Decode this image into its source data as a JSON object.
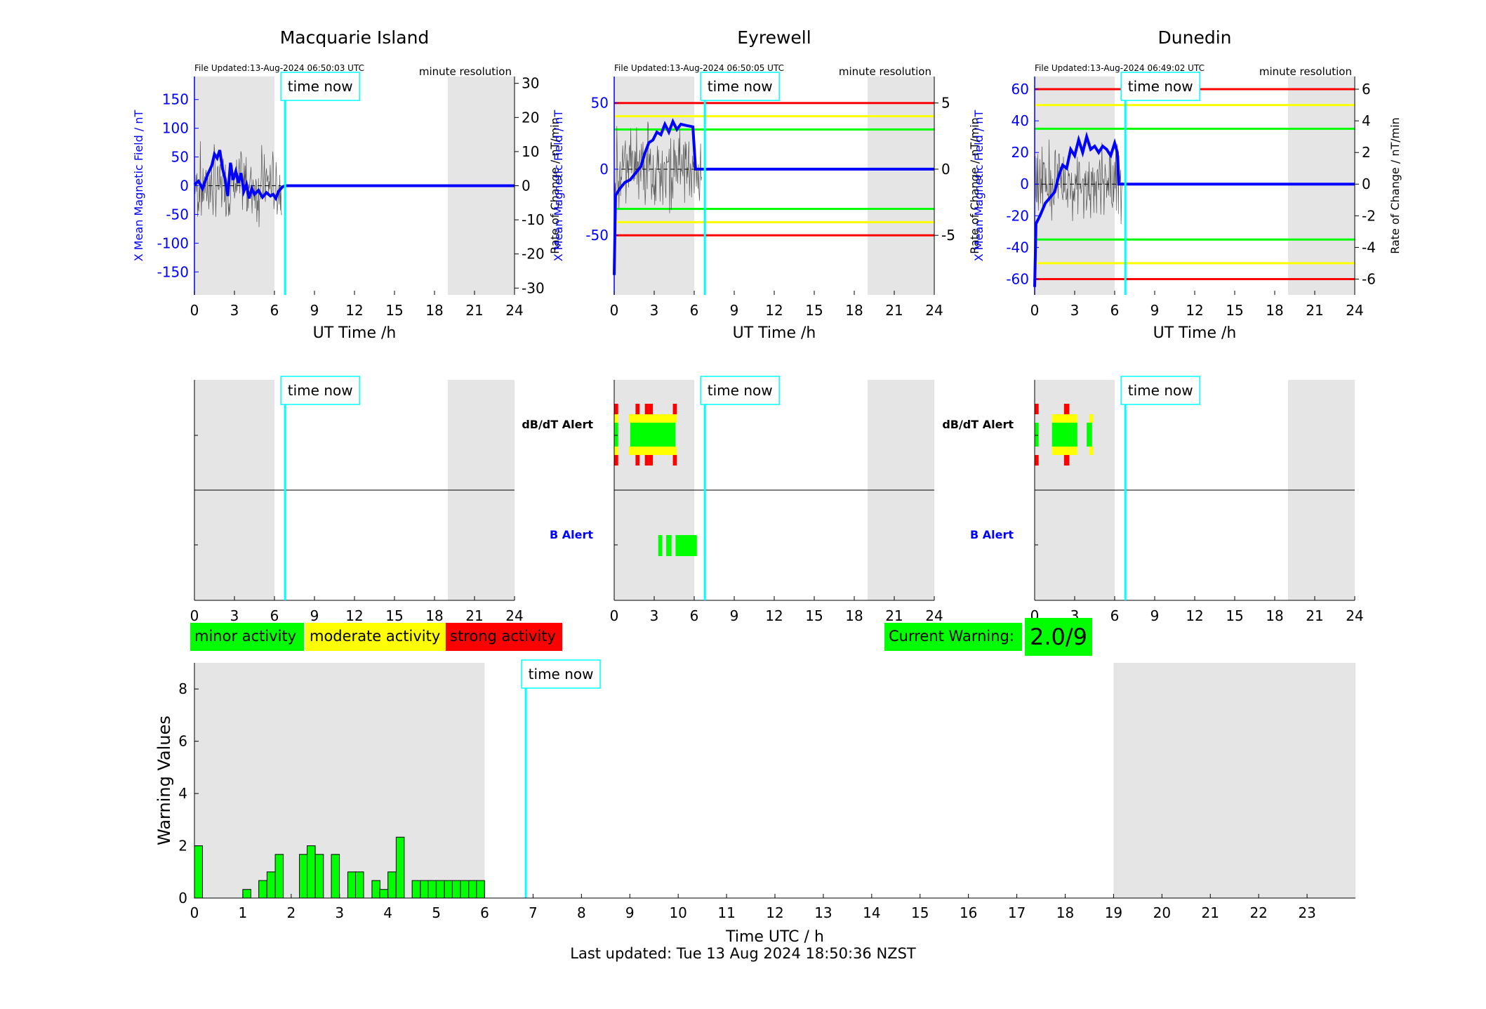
{
  "colors": {
    "shade": "#e5e5e5",
    "green": "#00ff00",
    "yellow": "#ffff00",
    "red": "#ff0000",
    "cyan": "#00ffff",
    "blue": "#0000ff",
    "grey": "#555555"
  },
  "time_now_label": "time now",
  "stations": [
    {
      "name": "Macquarie Island",
      "file_updated": "File Updated:13-Aug-2024 06:50:03 UTC",
      "resolution": "minute resolution",
      "left_label": "X Mean Magnetic Field / nT",
      "right_label": "Rate of Change / nT/min",
      "xlabel": "UT Time /h",
      "xticks": [
        "0",
        "3",
        "6",
        "9",
        "12",
        "15",
        "18",
        "21",
        "24"
      ],
      "left_ylim": [
        -190,
        190
      ],
      "left_ticks": [
        -150,
        -100,
        -50,
        0,
        50,
        100,
        150
      ],
      "right_ylim": [
        -32,
        32
      ],
      "right_ticks": [
        -30,
        -20,
        -10,
        0,
        10,
        20,
        30
      ],
      "thresholds": [],
      "shade_hours": [
        [
          0,
          6
        ],
        [
          19,
          24
        ]
      ],
      "time_now_h": 6.8,
      "mean_field": [
        [
          0,
          2
        ],
        [
          0.3,
          8
        ],
        [
          0.6,
          -5
        ],
        [
          1,
          20
        ],
        [
          1.3,
          35
        ],
        [
          1.5,
          55
        ],
        [
          1.7,
          48
        ],
        [
          1.9,
          62
        ],
        [
          2.1,
          30
        ],
        [
          2.3,
          12
        ],
        [
          2.5,
          -18
        ],
        [
          2.7,
          40
        ],
        [
          2.9,
          10
        ],
        [
          3.1,
          25
        ],
        [
          3.3,
          5
        ],
        [
          3.5,
          22
        ],
        [
          3.7,
          -10
        ],
        [
          3.9,
          2
        ],
        [
          4.1,
          -22
        ],
        [
          4.3,
          -5
        ],
        [
          4.5,
          -15
        ],
        [
          4.8,
          -8
        ],
        [
          5.1,
          -20
        ],
        [
          5.4,
          -12
        ],
        [
          5.7,
          -18
        ],
        [
          5.9,
          -15
        ],
        [
          6.1,
          -22
        ],
        [
          6.3,
          -10
        ],
        [
          6.6,
          -2
        ],
        [
          6.8,
          0
        ],
        [
          24,
          0
        ]
      ],
      "alert_dbdt": [],
      "alert_b": []
    },
    {
      "name": "Eyrewell",
      "file_updated": "File Updated:13-Aug-2024 06:50:05 UTC",
      "resolution": "minute resolution",
      "left_label": "X Mean Magnetic Field / nT",
      "right_label": "Rate of Change / nT/min",
      "xlabel": "UT Time /h",
      "xticks": [
        "0",
        "3",
        "6",
        "9",
        "12",
        "15",
        "18",
        "21",
        "24"
      ],
      "left_ylim": [
        -95,
        70
      ],
      "left_ticks": [
        -50,
        0,
        50
      ],
      "right_ylim": [
        -9.5,
        7
      ],
      "right_ticks": [
        -5,
        0,
        5
      ],
      "thresholds": [
        {
          "level": 3,
          "color": "#00ff00"
        },
        {
          "level": -3,
          "color": "#00ff00"
        },
        {
          "level": 4,
          "color": "#ffff00"
        },
        {
          "level": -4,
          "color": "#ffff00"
        },
        {
          "level": 5,
          "color": "#ff0000"
        },
        {
          "level": -5,
          "color": "#ff0000"
        }
      ],
      "shade_hours": [
        [
          0,
          6
        ],
        [
          19,
          24
        ]
      ],
      "time_now_h": 6.8,
      "mean_field": [
        [
          0,
          -80
        ],
        [
          0.1,
          -20
        ],
        [
          0.4,
          -15
        ],
        [
          0.8,
          -10
        ],
        [
          1.2,
          -8
        ],
        [
          1.6,
          -3
        ],
        [
          2,
          2
        ],
        [
          2.3,
          12
        ],
        [
          2.6,
          20
        ],
        [
          2.9,
          22
        ],
        [
          3.2,
          28
        ],
        [
          3.5,
          26
        ],
        [
          3.8,
          34
        ],
        [
          4.1,
          28
        ],
        [
          4.4,
          36
        ],
        [
          4.7,
          30
        ],
        [
          5,
          34
        ],
        [
          5.4,
          33
        ],
        [
          5.9,
          32
        ],
        [
          6.1,
          0
        ],
        [
          24,
          0
        ]
      ],
      "alert_dbdt": [
        [
          0,
          0.3,
          "r"
        ],
        [
          1.6,
          1.9,
          "r"
        ],
        [
          2.3,
          2.6,
          "r"
        ],
        [
          2.6,
          2.9,
          "r"
        ],
        [
          3.1,
          3.4,
          "y"
        ],
        [
          4.4,
          4.7,
          "r"
        ]
      ],
      "alert_b": [
        [
          3.3,
          3.6,
          "g"
        ],
        [
          3.9,
          4.3,
          "g"
        ],
        [
          4.6,
          6.2,
          "g"
        ]
      ]
    },
    {
      "name": "Dunedin",
      "file_updated": "File Updated:13-Aug-2024 06:49:02 UTC",
      "resolution": "minute resolution",
      "left_label": "X Mean Magnetic Field / nT",
      "right_label": "Rate of Change / nT/min",
      "xlabel": "UT Time /h",
      "xticks": [
        "0",
        "3",
        "6",
        "9",
        "12",
        "15",
        "18",
        "21",
        "24"
      ],
      "left_ylim": [
        -70,
        68
      ],
      "left_ticks": [
        -60,
        -40,
        -20,
        0,
        20,
        40,
        60
      ],
      "right_ylim": [
        -7,
        6.8
      ],
      "right_ticks": [
        -6,
        -4,
        -2,
        0,
        2,
        4,
        6
      ],
      "thresholds": [
        {
          "level": 3.5,
          "color": "#00ff00"
        },
        {
          "level": -3.5,
          "color": "#00ff00"
        },
        {
          "level": 5,
          "color": "#ffff00"
        },
        {
          "level": -5,
          "color": "#ffff00"
        },
        {
          "level": 6,
          "color": "#ff0000"
        },
        {
          "level": -6,
          "color": "#ff0000"
        }
      ],
      "shade_hours": [
        [
          0,
          6
        ],
        [
          19,
          24
        ]
      ],
      "time_now_h": 6.8,
      "mean_field": [
        [
          0,
          -65
        ],
        [
          0.1,
          -25
        ],
        [
          0.4,
          -20
        ],
        [
          0.8,
          -12
        ],
        [
          1.2,
          -8
        ],
        [
          1.5,
          -5
        ],
        [
          1.8,
          5
        ],
        [
          2.1,
          12
        ],
        [
          2.4,
          10
        ],
        [
          2.7,
          22
        ],
        [
          3,
          18
        ],
        [
          3.3,
          28
        ],
        [
          3.6,
          20
        ],
        [
          3.9,
          30
        ],
        [
          4.2,
          22
        ],
        [
          4.5,
          24
        ],
        [
          4.8,
          20
        ],
        [
          5.1,
          24
        ],
        [
          5.4,
          22
        ],
        [
          5.7,
          18
        ],
        [
          6,
          26
        ],
        [
          6.2,
          20
        ],
        [
          6.3,
          0
        ],
        [
          24,
          0
        ]
      ],
      "alert_dbdt": [
        [
          0,
          0.3,
          "r"
        ],
        [
          2.2,
          2.6,
          "r"
        ],
        [
          2.6,
          3.2,
          "y"
        ],
        [
          1.2,
          2.2,
          "y"
        ]
      ],
      "alert_b": []
    }
  ],
  "alert_labels": {
    "dbdt": "dB/dT Alert",
    "b": "B Alert"
  },
  "alert_xticks": [
    "0",
    "3",
    "6",
    "9",
    "12",
    "15",
    "18",
    "21",
    "24"
  ],
  "legend": {
    "minor": "minor activity",
    "moderate": "moderate activity",
    "strong": "strong activity"
  },
  "current_warning": {
    "label": "Current Warning:",
    "value": "2.0/9"
  },
  "chart_data": {
    "type": "bar",
    "title": "",
    "xlabel": "Time UTC / h",
    "ylabel": "Warning Values",
    "ylim": [
      0,
      9
    ],
    "xlim": [
      0,
      24
    ],
    "yticks": [
      "0",
      "2",
      "4",
      "6",
      "8"
    ],
    "xticks": [
      "0",
      "1",
      "2",
      "3",
      "4",
      "5",
      "6",
      "7",
      "8",
      "9",
      "10",
      "11",
      "12",
      "13",
      "14",
      "15",
      "16",
      "17",
      "18",
      "19",
      "20",
      "21",
      "22",
      "23"
    ],
    "shade_hours": [
      [
        0,
        6
      ],
      [
        19,
        24
      ]
    ],
    "time_now_h": 6.85,
    "x": [
      0,
      0.17,
      0.33,
      0.5,
      0.67,
      0.83,
      1,
      1.17,
      1.33,
      1.5,
      1.67,
      1.83,
      2,
      2.17,
      2.33,
      2.5,
      2.67,
      2.83,
      3,
      3.17,
      3.33,
      3.5,
      3.67,
      3.83,
      4,
      4.17,
      4.33,
      4.5,
      4.67,
      4.83,
      5,
      5.17,
      5.33,
      5.5,
      5.67,
      5.83
    ],
    "values": [
      2,
      0,
      0,
      0,
      0,
      0,
      0.33,
      0,
      0.67,
      1,
      1.67,
      0,
      0,
      1.67,
      2,
      1.67,
      0,
      1.67,
      0,
      1,
      1,
      0,
      0.67,
      0.33,
      1,
      2.33,
      0,
      0.67,
      0.67,
      0.67,
      0.67,
      0.67,
      0.67,
      0.67,
      0.67,
      0.67
    ]
  },
  "footer": "Last updated: Tue 13 Aug 2024 18:50:36 NZST"
}
